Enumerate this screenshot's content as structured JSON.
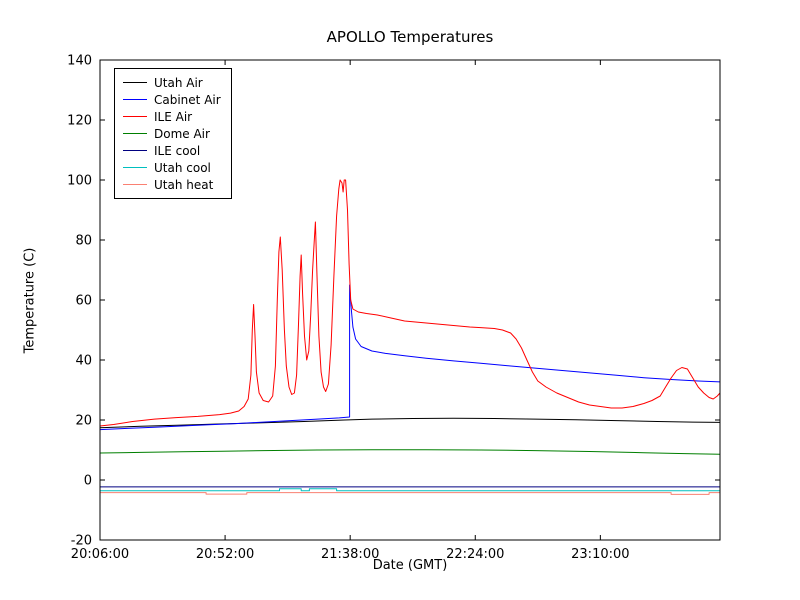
{
  "chart_data": {
    "type": "line",
    "title": "APOLLO Temperatures",
    "xlabel": "Date (GMT)",
    "ylabel": "Temperature (C)",
    "x_unit": "minutes since 20:06:00 GMT",
    "xlim": [
      0,
      228
    ],
    "ylim": [
      -20,
      140
    ],
    "yticks": [
      -20,
      0,
      20,
      40,
      60,
      80,
      100,
      120,
      140
    ],
    "xticks": [
      {
        "pos": 0,
        "label": "20:06:00"
      },
      {
        "pos": 46,
        "label": "20:52:00"
      },
      {
        "pos": 92,
        "label": "21:38:00"
      },
      {
        "pos": 138,
        "label": "22:24:00"
      },
      {
        "pos": 184,
        "label": "23:10:00"
      }
    ],
    "grid": false,
    "legend_position": "upper left",
    "series": [
      {
        "name": "Utah Air",
        "color": "#000000",
        "points": [
          [
            0,
            17.4
          ],
          [
            15,
            17.9
          ],
          [
            30,
            18.3
          ],
          [
            45,
            18.7
          ],
          [
            60,
            19.1
          ],
          [
            75,
            19.5
          ],
          [
            90,
            20.0
          ],
          [
            100,
            20.3
          ],
          [
            115,
            20.5
          ],
          [
            130,
            20.6
          ],
          [
            145,
            20.5
          ],
          [
            160,
            20.3
          ],
          [
            175,
            20.1
          ],
          [
            190,
            19.8
          ],
          [
            205,
            19.5
          ],
          [
            218,
            19.3
          ],
          [
            228,
            19.2
          ]
        ]
      },
      {
        "name": "Cabinet Air",
        "color": "#0000ff",
        "points": [
          [
            0,
            16.8
          ],
          [
            10,
            17.2
          ],
          [
            20,
            17.6
          ],
          [
            30,
            18.0
          ],
          [
            40,
            18.4
          ],
          [
            50,
            18.8
          ],
          [
            60,
            19.3
          ],
          [
            70,
            19.8
          ],
          [
            80,
            20.3
          ],
          [
            88,
            20.7
          ],
          [
            91.8,
            21.0
          ],
          [
            91.8,
            65.0
          ],
          [
            92.3,
            58.0
          ],
          [
            93,
            51.0
          ],
          [
            94,
            47.0
          ],
          [
            96,
            44.5
          ],
          [
            100,
            43.0
          ],
          [
            105,
            42.2
          ],
          [
            112,
            41.4
          ],
          [
            120,
            40.6
          ],
          [
            130,
            39.7
          ],
          [
            140,
            38.9
          ],
          [
            150,
            38.1
          ],
          [
            160,
            37.3
          ],
          [
            170,
            36.5
          ],
          [
            180,
            35.7
          ],
          [
            190,
            34.9
          ],
          [
            200,
            34.1
          ],
          [
            210,
            33.5
          ],
          [
            220,
            33.0
          ],
          [
            228,
            32.7
          ]
        ]
      },
      {
        "name": "ILE Air",
        "color": "#ff0000",
        "points": [
          [
            0,
            18.0
          ],
          [
            5,
            18.5
          ],
          [
            12,
            19.5
          ],
          [
            20,
            20.3
          ],
          [
            28,
            20.8
          ],
          [
            36,
            21.2
          ],
          [
            44,
            21.8
          ],
          [
            48,
            22.3
          ],
          [
            51,
            23.0
          ],
          [
            53,
            24.5
          ],
          [
            54.5,
            27.0
          ],
          [
            55.5,
            35.0
          ],
          [
            56,
            50.0
          ],
          [
            56.5,
            58.5
          ],
          [
            57,
            48.0
          ],
          [
            57.5,
            36.0
          ],
          [
            58.5,
            29.0
          ],
          [
            60,
            26.5
          ],
          [
            62,
            26.0
          ],
          [
            63.5,
            28.0
          ],
          [
            64.5,
            38.0
          ],
          [
            65.2,
            60.0
          ],
          [
            65.8,
            76.0
          ],
          [
            66.3,
            81.0
          ],
          [
            67,
            70.0
          ],
          [
            67.8,
            50.0
          ],
          [
            68.5,
            38.0
          ],
          [
            69.5,
            31.0
          ],
          [
            70.5,
            28.5
          ],
          [
            71.5,
            29.0
          ],
          [
            72.3,
            35.0
          ],
          [
            73,
            52.0
          ],
          [
            73.6,
            68.0
          ],
          [
            74,
            75.0
          ],
          [
            74.5,
            62.0
          ],
          [
            75.2,
            48.0
          ],
          [
            76,
            40.0
          ],
          [
            76.8,
            43.0
          ],
          [
            77.5,
            55.0
          ],
          [
            78.2,
            70.0
          ],
          [
            78.8,
            80.0
          ],
          [
            79.2,
            86.0
          ],
          [
            79.8,
            68.0
          ],
          [
            80.5,
            48.0
          ],
          [
            81.3,
            36.0
          ],
          [
            82.2,
            31.0
          ],
          [
            83,
            29.5
          ],
          [
            84,
            32.0
          ],
          [
            85,
            45.0
          ],
          [
            86,
            68.0
          ],
          [
            87,
            88.0
          ],
          [
            87.8,
            97.0
          ],
          [
            88.3,
            100.0
          ],
          [
            89,
            99.0
          ],
          [
            89.4,
            96.0
          ],
          [
            89.8,
            100.0
          ],
          [
            90.3,
            100.0
          ],
          [
            91,
            90.0
          ],
          [
            91.6,
            72.0
          ],
          [
            92.2,
            60.0
          ],
          [
            93,
            57.0
          ],
          [
            95,
            56.0
          ],
          [
            98,
            55.5
          ],
          [
            102,
            55.0
          ],
          [
            107,
            54.0
          ],
          [
            112,
            53.0
          ],
          [
            118,
            52.5
          ],
          [
            124,
            52.0
          ],
          [
            130,
            51.5
          ],
          [
            136,
            51.0
          ],
          [
            140,
            50.8
          ],
          [
            145,
            50.5
          ],
          [
            148,
            50.0
          ],
          [
            151,
            49.0
          ],
          [
            153,
            47.0
          ],
          [
            155,
            44.0
          ],
          [
            157,
            40.0
          ],
          [
            159,
            36.0
          ],
          [
            161,
            33.0
          ],
          [
            164,
            31.0
          ],
          [
            168,
            29.0
          ],
          [
            172,
            27.5
          ],
          [
            176,
            26.0
          ],
          [
            180,
            25.0
          ],
          [
            184,
            24.5
          ],
          [
            188,
            24.0
          ],
          [
            192,
            24.0
          ],
          [
            196,
            24.5
          ],
          [
            200,
            25.5
          ],
          [
            203,
            26.5
          ],
          [
            206,
            28.0
          ],
          [
            208,
            31.0
          ],
          [
            210,
            34.0
          ],
          [
            212,
            36.5
          ],
          [
            214,
            37.5
          ],
          [
            216,
            37.0
          ],
          [
            218,
            34.0
          ],
          [
            220,
            31.0
          ],
          [
            222,
            29.0
          ],
          [
            224,
            27.5
          ],
          [
            225.5,
            27.0
          ],
          [
            227,
            28.0
          ],
          [
            228,
            29.0
          ]
        ]
      },
      {
        "name": "Dome Air",
        "color": "#007f00",
        "points": [
          [
            0,
            9.0
          ],
          [
            15,
            9.2
          ],
          [
            30,
            9.4
          ],
          [
            45,
            9.6
          ],
          [
            60,
            9.8
          ],
          [
            80,
            10.0
          ],
          [
            100,
            10.1
          ],
          [
            120,
            10.1
          ],
          [
            140,
            10.0
          ],
          [
            160,
            9.8
          ],
          [
            180,
            9.5
          ],
          [
            200,
            9.1
          ],
          [
            215,
            8.8
          ],
          [
            228,
            8.6
          ]
        ]
      },
      {
        "name": "ILE cool",
        "color": "#000080",
        "points": [
          [
            0,
            -2.3
          ],
          [
            228,
            -2.3
          ]
        ]
      },
      {
        "name": "Utah cool",
        "color": "#00bfbf",
        "points": [
          [
            0,
            -3.6
          ],
          [
            66,
            -3.6
          ],
          [
            66,
            -2.9
          ],
          [
            74,
            -2.9
          ],
          [
            74,
            -3.6
          ],
          [
            77,
            -3.6
          ],
          [
            77,
            -2.9
          ],
          [
            87,
            -2.9
          ],
          [
            87,
            -3.6
          ],
          [
            228,
            -3.6
          ]
        ]
      },
      {
        "name": "Utah heat",
        "color": "#fa8072",
        "points": [
          [
            0,
            -4.2
          ],
          [
            39,
            -4.2
          ],
          [
            39,
            -4.7
          ],
          [
            54,
            -4.7
          ],
          [
            54,
            -4.2
          ],
          [
            210,
            -4.2
          ],
          [
            210,
            -4.8
          ],
          [
            224,
            -4.8
          ],
          [
            224,
            -4.2
          ],
          [
            228,
            -4.2
          ]
        ]
      }
    ]
  }
}
